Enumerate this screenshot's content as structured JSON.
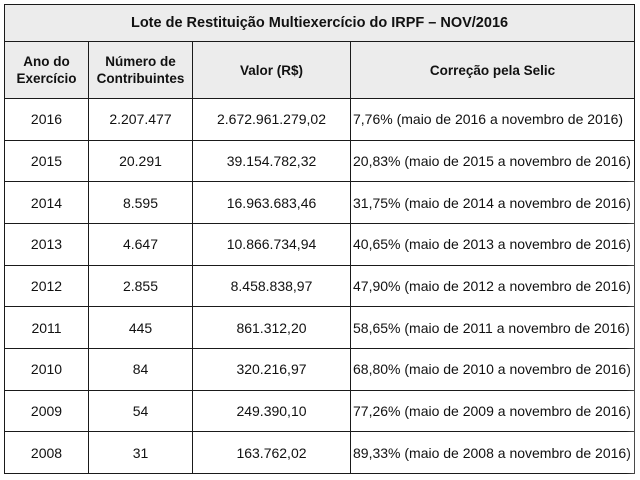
{
  "table": {
    "title": "Lote de Restituição Multiexercício do IRPF – NOV/2016",
    "headers": {
      "year": [
        "Ano do",
        "Exercício"
      ],
      "count": [
        "Número de",
        "Contribuintes"
      ],
      "value": "Valor (R$)",
      "selic": "Correção pela Selic"
    },
    "rows": [
      {
        "year": "2016",
        "count": "2.207.477",
        "value": "2.672.961.279,02",
        "selic": "7,76% (maio de 2016 a novembro de 2016)"
      },
      {
        "year": "2015",
        "count": "20.291",
        "value": "39.154.782,32",
        "selic": "20,83% (maio de 2015 a novembro de 2016)"
      },
      {
        "year": "2014",
        "count": "8.595",
        "value": "16.963.683,46",
        "selic": "31,75% (maio de 2014 a novembro de 2016)"
      },
      {
        "year": "2013",
        "count": "4.647",
        "value": "10.866.734,94",
        "selic": "40,65% (maio de 2013 a novembro de 2016)"
      },
      {
        "year": "2012",
        "count": "2.855",
        "value": "8.458.838,97",
        "selic": "47,90% (maio de 2012 a novembro de 2016)"
      },
      {
        "year": "2011",
        "count": "445",
        "value": "861.312,20",
        "selic": "58,65% (maio de 2011 a novembro de 2016)"
      },
      {
        "year": "2010",
        "count": "84",
        "value": "320.216,97",
        "selic": "68,80% (maio de 2010 a novembro de 2016)"
      },
      {
        "year": "2009",
        "count": "54",
        "value": "249.390,10",
        "selic": "77,26% (maio de 2009 a novembro de 2016)"
      },
      {
        "year": "2008",
        "count": "31",
        "value": "163.762,02",
        "selic": "89,33% (maio de 2008 a novembro de 2016)"
      }
    ]
  }
}
